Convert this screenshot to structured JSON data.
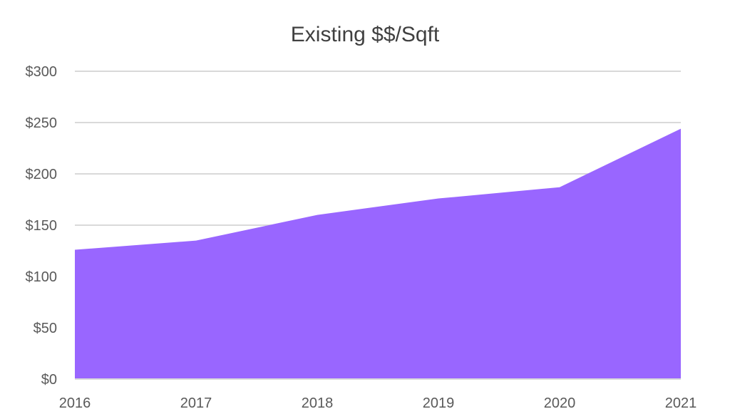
{
  "chart_data": {
    "type": "area",
    "title": "Existing $$/Sqft",
    "xlabel": "",
    "ylabel": "",
    "categories": [
      "2016",
      "2017",
      "2018",
      "2019",
      "2020",
      "2021"
    ],
    "values": [
      126,
      135,
      160,
      176,
      187,
      244
    ],
    "ylim": [
      0,
      300
    ],
    "y_ticks": [
      0,
      50,
      100,
      150,
      200,
      250,
      300
    ],
    "y_tick_labels": [
      "$0",
      "$50",
      "$100",
      "$150",
      "$200",
      "$250",
      "$300"
    ],
    "grid": true,
    "legend": "none",
    "colors": {
      "area": "#9966FF",
      "grid": "#D9D9D9",
      "text": "#595959",
      "title": "#404040"
    }
  }
}
